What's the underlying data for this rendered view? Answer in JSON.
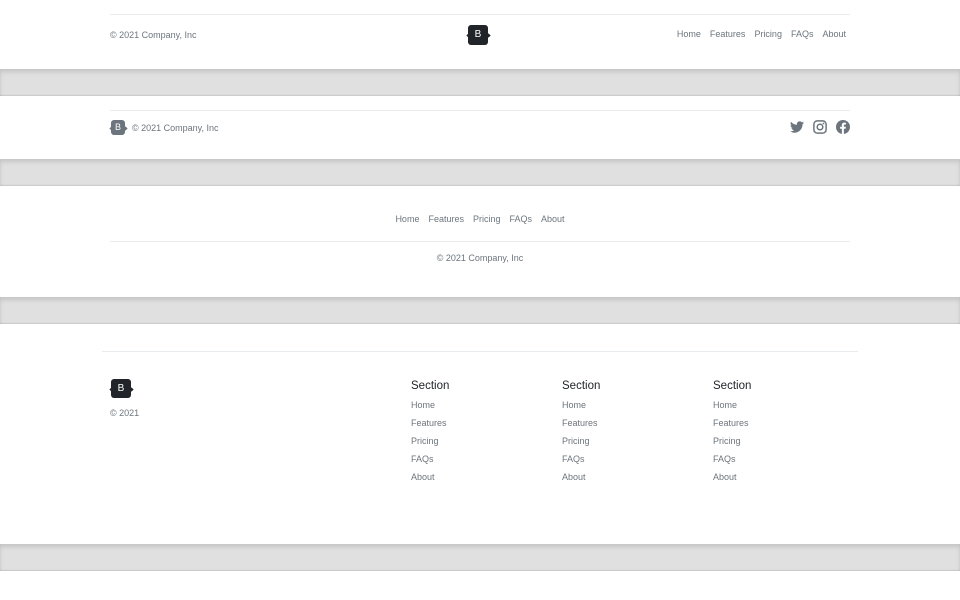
{
  "brand_letter": "B",
  "nav": [
    "Home",
    "Features",
    "Pricing",
    "FAQs",
    "About"
  ],
  "footer1": {
    "copyright": "© 2021 Company, Inc"
  },
  "footer2": {
    "copyright": "© 2021 Company, Inc",
    "social": [
      "twitter-icon",
      "instagram-icon",
      "facebook-icon"
    ]
  },
  "footer3": {
    "copyright": "© 2021 Company, Inc"
  },
  "footer4": {
    "copyright": "© 2021",
    "sections": [
      {
        "title": "Section",
        "links": [
          "Home",
          "Features",
          "Pricing",
          "FAQs",
          "About"
        ]
      },
      {
        "title": "Section",
        "links": [
          "Home",
          "Features",
          "Pricing",
          "FAQs",
          "About"
        ]
      },
      {
        "title": "Section",
        "links": [
          "Home",
          "Features",
          "Pricing",
          "FAQs",
          "About"
        ]
      }
    ]
  },
  "colors": {
    "text": "#6c757d",
    "logo": "#212529",
    "divider": "#e0e0e0"
  }
}
